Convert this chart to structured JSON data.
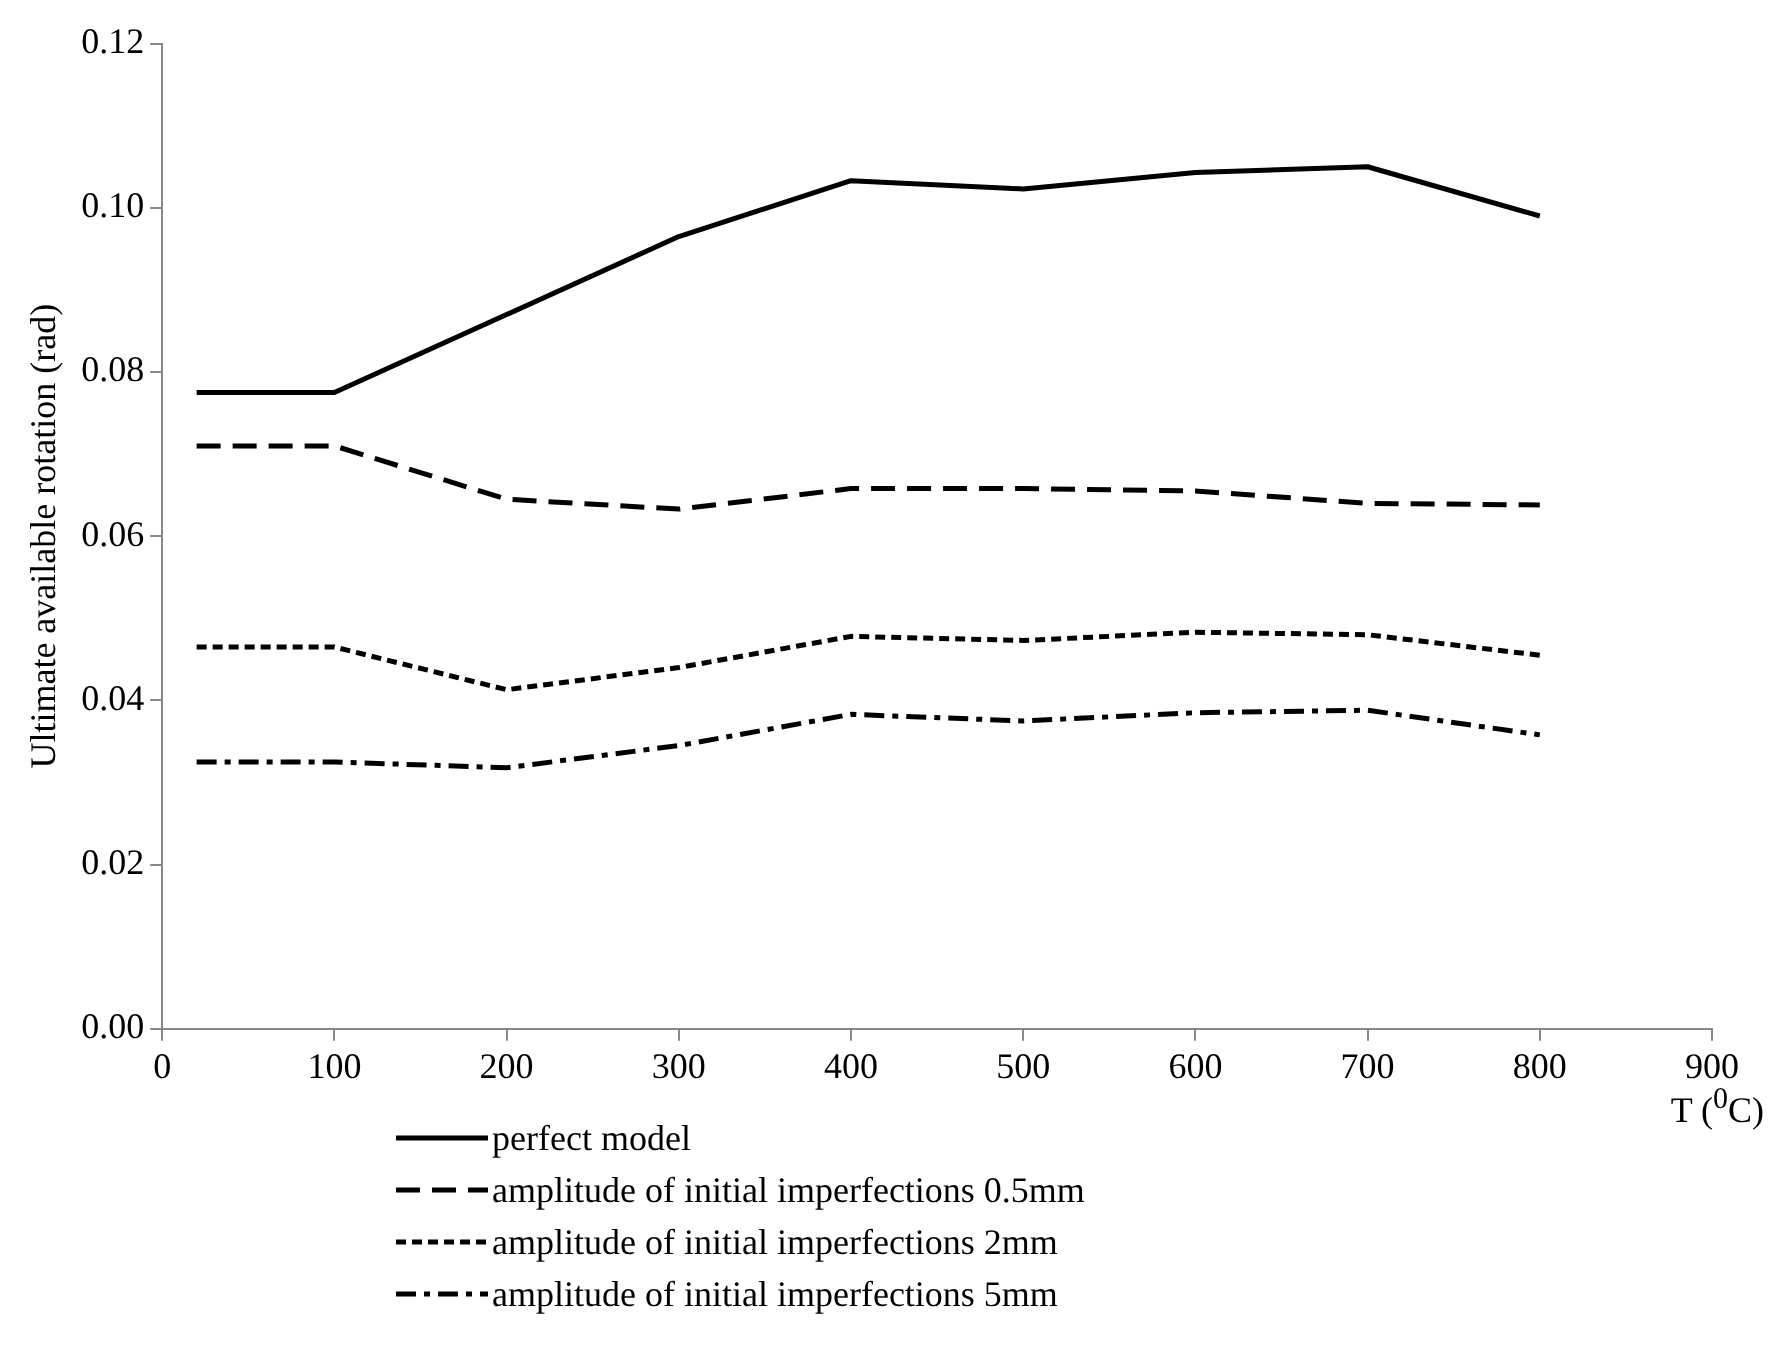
{
  "chart_data": {
    "type": "line",
    "xlabel": "T ($^{0}$C)",
    "ylabel": "Ultimate available rotation (rad)",
    "x": [
      20,
      100,
      200,
      300,
      400,
      500,
      600,
      700,
      800
    ],
    "xlim": [
      0,
      900
    ],
    "xticks": [
      0,
      100,
      200,
      300,
      400,
      500,
      600,
      700,
      800,
      900
    ],
    "ylim": [
      0,
      0.12
    ],
    "yticks": [
      {
        "value": 0,
        "label": "0.00"
      },
      {
        "value": 0.02,
        "label": "0.02"
      },
      {
        "value": 0.04,
        "label": "0.04"
      },
      {
        "value": 0.06,
        "label": "0.06"
      },
      {
        "value": 0.08,
        "label": "0.08"
      },
      {
        "value": 0.1,
        "label": "0.10"
      },
      {
        "value": 0.12,
        "label": "0.12"
      }
    ],
    "grid": false,
    "legend": "bottom",
    "marker": "none",
    "series": [
      {
        "name": "perfect model",
        "color": "#000000",
        "line_style": "solid",
        "values": [
          0.0775,
          0.0775,
          0.087,
          0.0965,
          0.1033,
          0.1023,
          0.1043,
          0.105,
          0.099
        ]
      },
      {
        "name": "amplitude of initial imperfections 0.5mm",
        "color": "#000000",
        "line_style": "dashed",
        "values": [
          0.071,
          0.071,
          0.0645,
          0.0633,
          0.0658,
          0.0658,
          0.0655,
          0.064,
          0.0638
        ]
      },
      {
        "name": "amplitude of initial imperfections 2mm",
        "color": "#000000",
        "line_style": "dotted",
        "values": [
          0.0465,
          0.0465,
          0.0413,
          0.044,
          0.0478,
          0.0473,
          0.0483,
          0.048,
          0.0455
        ]
      },
      {
        "name": "amplitude of initial imperfections 5mm",
        "color": "#000000",
        "line_style": "dashdot",
        "values": [
          0.0325,
          0.0325,
          0.0318,
          0.0345,
          0.0383,
          0.0375,
          0.0385,
          0.0388,
          0.0358
        ]
      }
    ]
  }
}
